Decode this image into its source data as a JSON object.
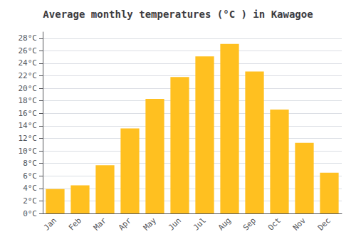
{
  "chart_data": {
    "type": "bar",
    "title": "Average monthly temperatures (°C ) in Kawagoe",
    "categories": [
      "Jan",
      "Feb",
      "Mar",
      "Apr",
      "May",
      "Jun",
      "Jul",
      "Aug",
      "Sep",
      "Oct",
      "Nov",
      "Dec"
    ],
    "values": [
      3.9,
      4.5,
      7.7,
      13.6,
      18.3,
      21.8,
      25.1,
      27.1,
      22.7,
      16.6,
      11.3,
      6.5
    ],
    "color": "#FFC020",
    "ylim": [
      0,
      29
    ],
    "yticks": [
      {
        "value": 0,
        "label": "0°C"
      },
      {
        "value": 2,
        "label": "2°C"
      },
      {
        "value": 4,
        "label": "4°C"
      },
      {
        "value": 6,
        "label": "6°C"
      },
      {
        "value": 8,
        "label": "8°C"
      },
      {
        "value": 10,
        "label": "10°C"
      },
      {
        "value": 12,
        "label": "12°C"
      },
      {
        "value": 14,
        "label": "14°C"
      },
      {
        "value": 16,
        "label": "16°C"
      },
      {
        "value": 18,
        "label": "18°C"
      },
      {
        "value": 20,
        "label": "20°C"
      },
      {
        "value": 22,
        "label": "22°C"
      },
      {
        "value": 24,
        "label": "24°C"
      },
      {
        "value": 26,
        "label": "26°C"
      },
      {
        "value": 28,
        "label": "28°C"
      }
    ],
    "grid": true
  }
}
